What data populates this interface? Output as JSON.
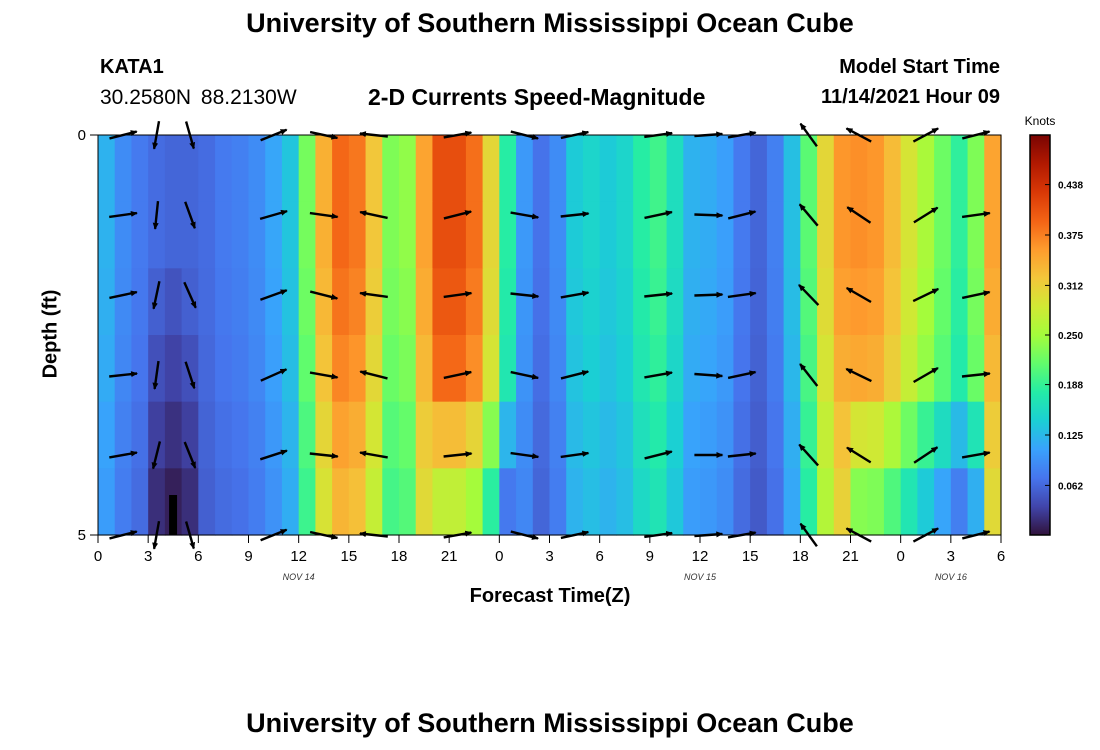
{
  "titles": {
    "main": "University of Southern Mississippi Ocean Cube",
    "bottom": "University of Southern Mississippi Ocean Cube",
    "station": "KATA1",
    "coords": "30.2580N  88.2130W",
    "subtitle": "2-D Currents Speed-Magnitude",
    "model_start_label": "Model Start Time",
    "model_start_value": "11/14/2021 Hour 09"
  },
  "colors": {
    "arrow": "#000000",
    "colormap": [
      "#30123b",
      "#4145ab",
      "#4675ed",
      "#39a2fc",
      "#1bcfd4",
      "#24eca6",
      "#61fc6c",
      "#a4fc3b",
      "#d1e834",
      "#f3c63a",
      "#fe9b2d",
      "#f36315",
      "#d93806",
      "#b11901",
      "#7a0402"
    ]
  },
  "chart_data": {
    "type": "heatmap",
    "title": "2-D Currents Speed-Magnitude",
    "xlabel": "Forecast Time(Z)",
    "ylabel": "Depth (ft)",
    "colorbar_label": "Knots",
    "colorbar_ticks": [
      "0.062",
      "0.125",
      "0.188",
      "0.250",
      "0.312",
      "0.375",
      "0.438"
    ],
    "colorbar_tick_values": [
      0.062,
      0.125,
      0.188,
      0.25,
      0.312,
      0.375,
      0.438
    ],
    "zlim": [
      0,
      0.5
    ],
    "x_range_hours": [
      0,
      54
    ],
    "x_ticks": [
      "0",
      "3",
      "6",
      "9",
      "12",
      "15",
      "18",
      "21",
      "0",
      "3",
      "6",
      "9",
      "12",
      "15",
      "18",
      "21",
      "0",
      "3",
      "6"
    ],
    "day_labels": [
      {
        "text": "NOV 14",
        "hour": 12
      },
      {
        "text": "NOV 15",
        "hour": 36
      },
      {
        "text": "NOV 16",
        "hour": 51
      }
    ],
    "y_ticks": [
      "0",
      "5"
    ],
    "ylim": [
      0,
      5
    ],
    "depth_levels": 6,
    "speed_by_hour_surface": [
      0.14,
      0.1,
      0.08,
      0.07,
      0.06,
      0.06,
      0.06,
      0.07,
      0.08,
      0.08,
      0.1,
      0.12,
      0.15,
      0.3,
      0.38,
      0.4,
      0.36,
      0.28,
      0.18,
      0.3,
      0.4,
      0.42,
      0.4,
      0.37,
      0.24,
      0.12,
      0.08,
      0.06,
      0.12,
      0.16,
      0.14,
      0.14,
      0.16,
      0.2,
      0.19,
      0.13,
      0.11,
      0.12,
      0.09,
      0.06,
      0.06,
      0.1,
      0.16,
      0.26,
      0.35,
      0.37,
      0.36,
      0.36,
      0.3,
      0.28,
      0.23,
      0.21,
      0.16,
      0.3,
      0.4
    ],
    "depth_factor": [
      1.0,
      1.0,
      0.98,
      0.95,
      0.9,
      0.86
    ],
    "bottom_adjust": {
      "hours": [
        20,
        21,
        22,
        23,
        24,
        45,
        46,
        47,
        48,
        49,
        50,
        51,
        52
      ],
      "value": -0.08
    },
    "low_core": {
      "hours": [
        3,
        4,
        5
      ],
      "values": [
        0.02,
        0.01,
        0.02
      ]
    },
    "arrows": {
      "hours": [
        1.5,
        3.5,
        5.5,
        10.5,
        13.5,
        16.5,
        21.5,
        25.5,
        28.5,
        33.5,
        36.5,
        38.5,
        42.5,
        45.5,
        49.5,
        52.5
      ],
      "directions_deg": [
        80,
        190,
        160,
        70,
        100,
        280,
        80,
        100,
        80,
        80,
        90,
        80,
        320,
        300,
        60,
        80
      ],
      "speed_knots": [
        0.15,
        0.08,
        0.06,
        0.12,
        0.35,
        0.2,
        0.4,
        0.15,
        0.14,
        0.15,
        0.09,
        0.1,
        0.18,
        0.38,
        0.36,
        0.3
      ]
    }
  }
}
